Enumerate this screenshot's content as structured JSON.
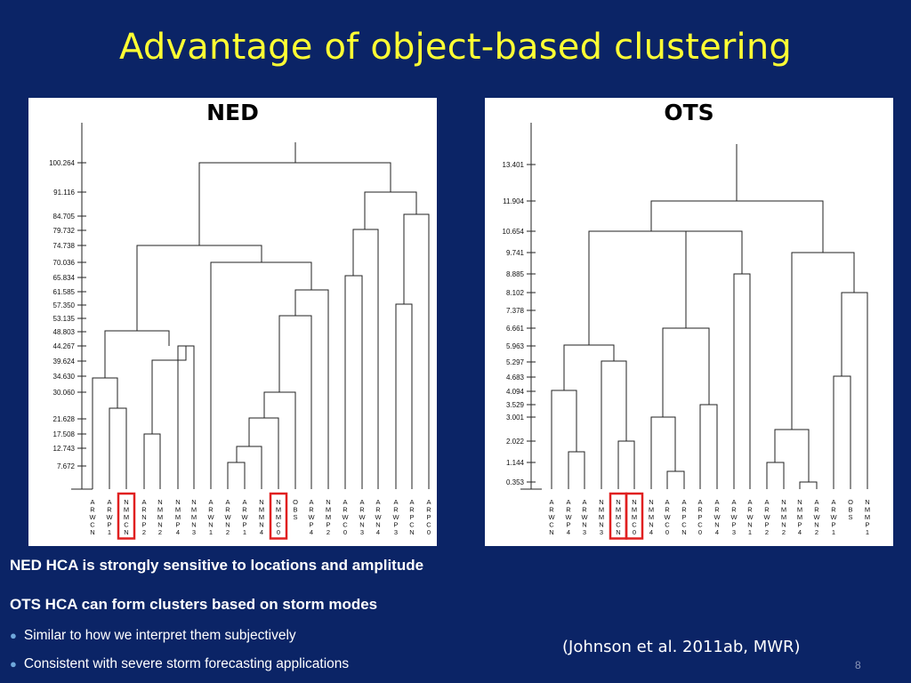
{
  "slide": {
    "title": "Advantage of object-based clustering",
    "heading_1": "NED HCA is strongly sensitive to locations and amplitude",
    "heading_2": "OTS HCA can form clusters based on storm modes",
    "bullets": [
      "Similar to how we interpret them subjectively",
      "Consistent with severe storm forecasting applications"
    ],
    "citation": "(Johnson et al. 2011ab, MWR)",
    "page_number": "8"
  },
  "colors": {
    "background": "#0b2466",
    "title": "#ffff33",
    "highlight_box": "#e02020"
  },
  "chart_data": [
    {
      "type": "dendrogram",
      "title": "NED",
      "y_ticks": [
        "100.264",
        "91.116",
        "84.705",
        "79.732",
        "74.738",
        "70.036",
        "65.834",
        "61.585",
        "57.350",
        "53.135",
        "48.803",
        "44.267",
        "39.624",
        "34.630",
        "30.060",
        "21.628",
        "17.508",
        "12.743",
        "7.672"
      ],
      "leaves": [
        "ARWCN",
        "ARWP1",
        "NMMCN",
        "ARNP2",
        "NMMN2",
        "NMMP4",
        "NMMN3",
        "ARWN1",
        "ARWN2",
        "ARWP1",
        "NMMN4",
        "NMMC0",
        "OBS",
        "ARWP4",
        "NMMP2",
        "ARWC0",
        "ARWN3",
        "ARWN4",
        "ARWP3",
        "ARPCN",
        "ARPC0"
      ],
      "highlighted_leaves": [
        "NMMCN",
        "NMMC0"
      ]
    },
    {
      "type": "dendrogram",
      "title": "OTS",
      "y_ticks": [
        "13.401",
        "11.904",
        "10.654",
        "9.741",
        "8.885",
        "8.102",
        "7.378",
        "6.661",
        "5.963",
        "5.297",
        "4.683",
        "4.094",
        "3.529",
        "3.001",
        "2.022",
        "1.144",
        "0.353"
      ],
      "leaves": [
        "ARWCN",
        "ARWP4",
        "ARWN3",
        "NMMN3",
        "NMMCN",
        "NMMC0",
        "NMMN4",
        "ARWC0",
        "ARPCN",
        "ARPC0",
        "ARWN4",
        "ARWP3",
        "ARWN1",
        "ARWP2",
        "NMMN2",
        "NMMP4",
        "ARWN2",
        "ARWP1",
        "OBS",
        "NMMP1"
      ],
      "highlighted_leaves": [
        "NMMCN",
        "NMMC0"
      ]
    }
  ]
}
